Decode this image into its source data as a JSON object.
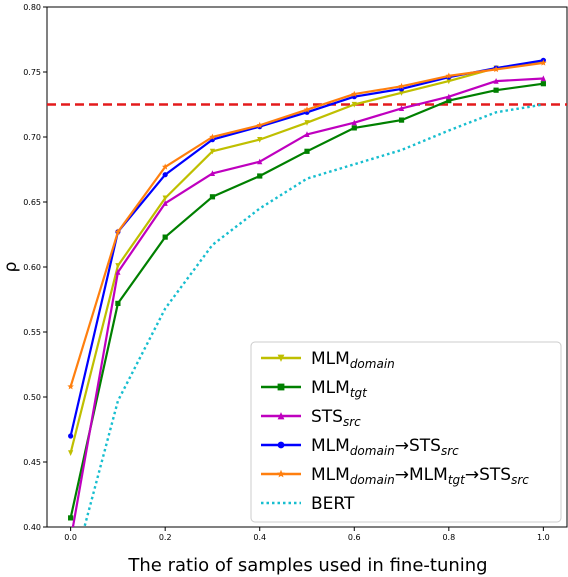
{
  "chart_data": {
    "type": "line",
    "title": "",
    "xlabel": "The ratio of samples used in fine-tuning",
    "ylabel": "ρ",
    "xlim": [
      -0.05,
      1.05
    ],
    "ylim": [
      0.4,
      0.8
    ],
    "x_ticks": [
      "0.0",
      "0.2",
      "0.4",
      "0.6",
      "0.8",
      "1.0"
    ],
    "y_ticks": [
      "0.40",
      "0.45",
      "0.50",
      "0.55",
      "0.60",
      "0.65",
      "0.70",
      "0.75",
      "0.80"
    ],
    "grid": false,
    "legend_position": "bottom-right",
    "x": [
      0.0,
      0.1,
      0.2,
      0.3,
      0.4,
      0.5,
      0.6,
      0.7,
      0.8,
      0.9,
      1.0
    ],
    "reference_line": {
      "y": 0.725,
      "color": "#e41a1c",
      "style": "dashed"
    },
    "series": [
      {
        "name_main": "MLM",
        "name_parts": [
          [
            "MLM",
            "n"
          ],
          [
            "domain",
            "s"
          ]
        ],
        "color": "#bfbf00",
        "marker": "triangle-down",
        "values": [
          0.457,
          0.601,
          0.653,
          0.689,
          0.698,
          0.711,
          0.725,
          0.734,
          0.743,
          0.753,
          0.758
        ]
      },
      {
        "name_parts": [
          [
            "MLM",
            "n"
          ],
          [
            "tgt",
            "s"
          ]
        ],
        "color": "#008000",
        "marker": "square",
        "values": [
          0.407,
          0.572,
          0.623,
          0.654,
          0.67,
          0.689,
          0.707,
          0.713,
          0.728,
          0.736,
          0.741
        ]
      },
      {
        "name_parts": [
          [
            "STS",
            "n"
          ],
          [
            "src",
            "s"
          ]
        ],
        "color": "#bf00bf",
        "marker": "triangle-up",
        "values": [
          0.39,
          0.596,
          0.649,
          0.672,
          0.681,
          0.702,
          0.711,
          0.722,
          0.731,
          0.743,
          0.745
        ]
      },
      {
        "name_parts": [
          [
            "MLM",
            "n"
          ],
          [
            "domain",
            "s"
          ],
          [
            "→STS",
            "n"
          ],
          [
            "src",
            "s"
          ]
        ],
        "color": "#0000ff",
        "marker": "circle",
        "values": [
          0.47,
          0.627,
          0.671,
          0.698,
          0.708,
          0.719,
          0.731,
          0.737,
          0.746,
          0.753,
          0.759
        ]
      },
      {
        "name_parts": [
          [
            "MLM",
            "n"
          ],
          [
            "domain",
            "s"
          ],
          [
            "→MLM",
            "n"
          ],
          [
            "tgt",
            "s"
          ],
          [
            "→STS",
            "n"
          ],
          [
            "src",
            "s"
          ]
        ],
        "color": "#ff7f0e",
        "marker": "star",
        "values": [
          0.508,
          0.627,
          0.677,
          0.7,
          0.709,
          0.721,
          0.733,
          0.739,
          0.747,
          0.752,
          0.757
        ]
      },
      {
        "name_parts": [
          [
            "BERT",
            "n"
          ]
        ],
        "color": "#17becf",
        "marker": "none",
        "style": "dotted",
        "values": [
          0.36,
          0.497,
          0.568,
          0.617,
          0.645,
          0.668,
          0.679,
          0.69,
          0.705,
          0.719,
          0.725
        ]
      }
    ]
  }
}
